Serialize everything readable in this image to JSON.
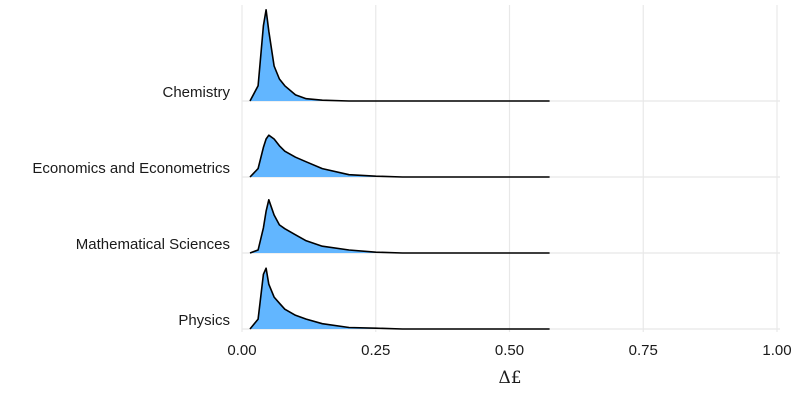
{
  "chart_data": {
    "type": "ridgeline",
    "xlabel": "Δ£",
    "x": [
      0.015,
      0.03,
      0.04,
      0.045,
      0.05,
      0.06,
      0.07,
      0.08,
      0.1,
      0.12,
      0.15,
      0.2,
      0.25,
      0.3,
      0.4,
      0.5,
      0.575
    ],
    "series": [
      {
        "name": "Chemistry",
        "values": [
          0,
          0.2,
          0.99,
          1.2,
          0.92,
          0.46,
          0.29,
          0.2,
          0.08,
          0.03,
          0.01,
          0,
          0,
          0,
          0,
          0,
          0
        ]
      },
      {
        "name": "Economics and Econometrics",
        "values": [
          0,
          0.11,
          0.39,
          0.5,
          0.55,
          0.5,
          0.41,
          0.34,
          0.26,
          0.2,
          0.11,
          0.03,
          0.01,
          0,
          0,
          0,
          0
        ]
      },
      {
        "name": "Mathematical Sciences",
        "values": [
          0,
          0.04,
          0.33,
          0.55,
          0.7,
          0.5,
          0.37,
          0.32,
          0.24,
          0.16,
          0.09,
          0.04,
          0.01,
          0,
          0,
          0,
          0
        ]
      },
      {
        "name": "Physics",
        "values": [
          0,
          0.13,
          0.72,
          0.8,
          0.59,
          0.42,
          0.34,
          0.26,
          0.18,
          0.13,
          0.07,
          0.02,
          0.01,
          0,
          0,
          0,
          0
        ]
      }
    ],
    "color": "#62b6ff",
    "xlim": [
      0,
      1
    ],
    "xticks": [
      {
        "value": 0,
        "label": "0.00"
      },
      {
        "value": 0.25,
        "label": "0.25"
      },
      {
        "value": 0.5,
        "label": "0.50"
      },
      {
        "value": 0.75,
        "label": "0.75"
      },
      {
        "value": 1,
        "label": "1.00"
      }
    ],
    "grid": true
  }
}
